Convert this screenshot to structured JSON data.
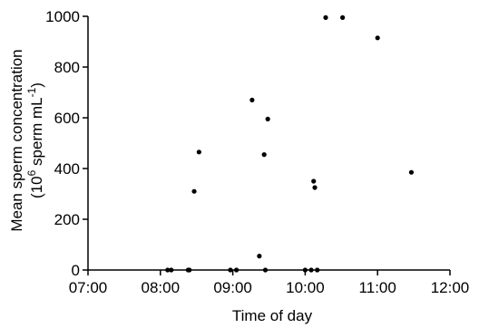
{
  "chart_data": {
    "type": "scatter",
    "title": "",
    "xlabel": "Time of day",
    "ylabel_line1": "Mean sperm concentration",
    "ylabel_line2_parts": [
      "(10",
      "6",
      " sperm mL",
      "-1",
      ")"
    ],
    "xlim": [
      "07:00",
      "12:00"
    ],
    "ylim": [
      0,
      1000
    ],
    "x_ticks": [
      "07:00",
      "08:00",
      "09:00",
      "10:00",
      "11:00",
      "12:00"
    ],
    "y_ticks": [
      0,
      200,
      400,
      600,
      800,
      1000
    ],
    "grid": false,
    "legend": "none",
    "points": [
      {
        "x": "08:06",
        "y": 0
      },
      {
        "x": "08:09",
        "y": 0
      },
      {
        "x": "08:23",
        "y": 0
      },
      {
        "x": "08:24",
        "y": 0
      },
      {
        "x": "08:28",
        "y": 310
      },
      {
        "x": "08:32",
        "y": 465
      },
      {
        "x": "08:58",
        "y": 0
      },
      {
        "x": "09:03",
        "y": 0
      },
      {
        "x": "09:16",
        "y": 670
      },
      {
        "x": "09:22",
        "y": 55
      },
      {
        "x": "09:26",
        "y": 455
      },
      {
        "x": "09:27",
        "y": 0
      },
      {
        "x": "09:29",
        "y": 595
      },
      {
        "x": "10:00",
        "y": 0
      },
      {
        "x": "10:05",
        "y": 0
      },
      {
        "x": "10:07",
        "y": 350
      },
      {
        "x": "10:08",
        "y": 325
      },
      {
        "x": "10:10",
        "y": 0
      },
      {
        "x": "10:17",
        "y": 995
      },
      {
        "x": "10:31",
        "y": 995
      },
      {
        "x": "11:00",
        "y": 915
      },
      {
        "x": "11:28",
        "y": 385
      }
    ]
  }
}
